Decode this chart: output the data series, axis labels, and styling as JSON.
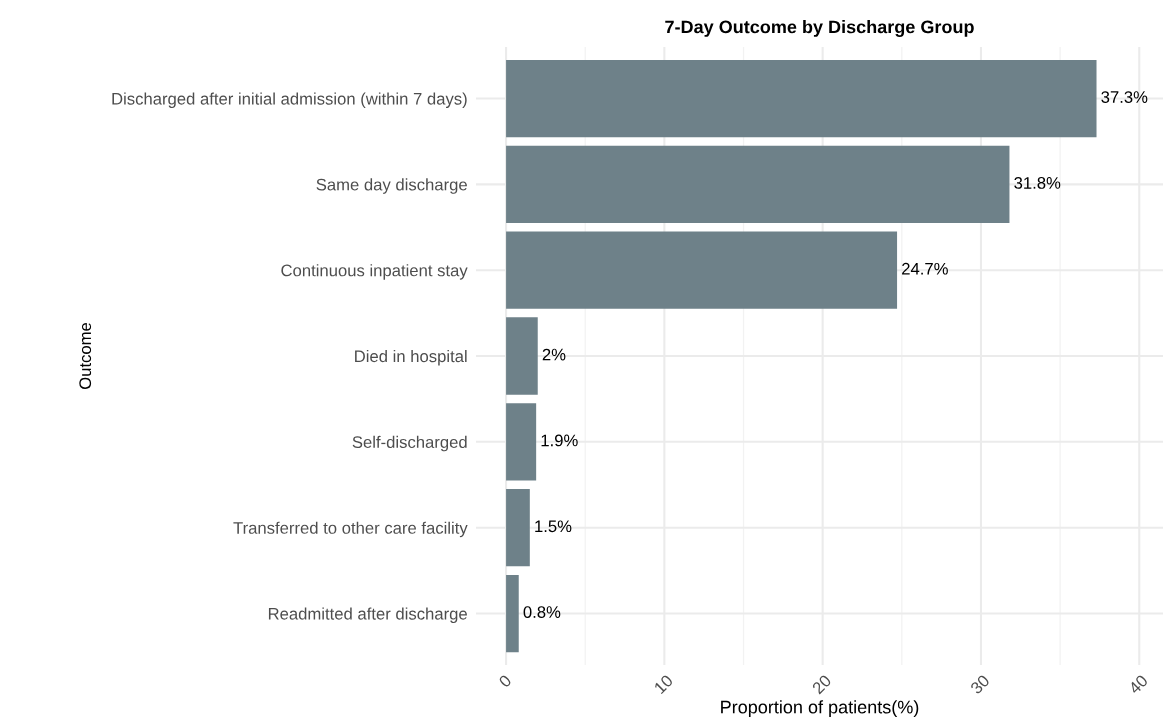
{
  "chart_data": {
    "type": "bar",
    "orientation": "horizontal",
    "title": "7-Day Outcome by Discharge Group",
    "xlabel": "Proportion of patients(%)",
    "ylabel": "Outcome",
    "categories": [
      "Discharged after initial admission (within 7 days)",
      "Same day discharge",
      "Continuous inpatient stay",
      "Died in hospital",
      "Self-discharged",
      "Transferred to other care facility",
      "Readmitted after discharge"
    ],
    "values": [
      37.3,
      31.8,
      24.7,
      2,
      1.9,
      1.5,
      0.8
    ],
    "value_labels": [
      "37.3%",
      "31.8%",
      "24.7%",
      "2%",
      "1.9%",
      "1.5%",
      "0.8%"
    ],
    "color": "#6e8189",
    "xlim": [
      -1.9,
      41.5
    ],
    "xticks": [
      0,
      10,
      20,
      30,
      40
    ],
    "grid": true
  }
}
